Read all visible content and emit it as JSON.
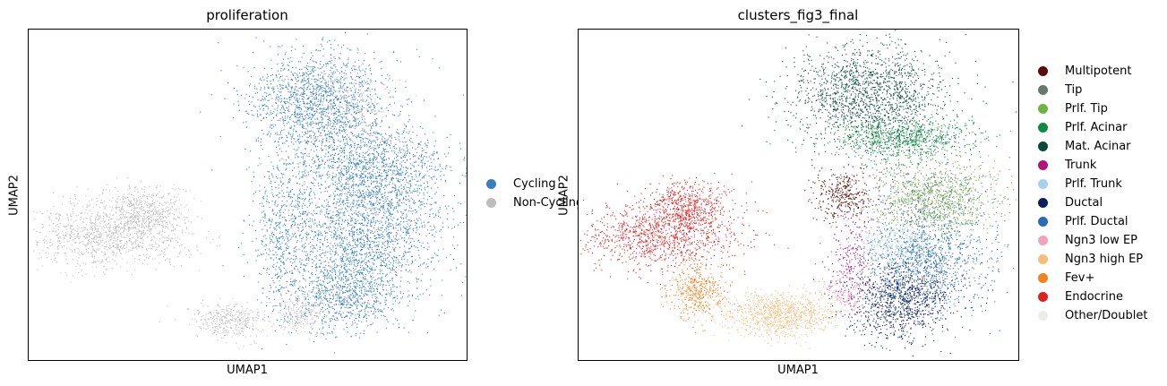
{
  "chart_data": [
    {
      "type": "scatter",
      "title": "proliferation",
      "xlabel": "UMAP1",
      "ylabel": "UMAP2",
      "grid": false,
      "ticks": false,
      "legend_position": "right",
      "legend": [
        {
          "label": "Cycling",
          "color": "#3a7ebf"
        },
        {
          "label": "Non-Cycling",
          "color": "#bdbdbd"
        }
      ],
      "groups": [
        {
          "name": "Cycling",
          "color": "#3a7ebf",
          "regions": [
            {
              "cx": 0.66,
              "cy": 0.22,
              "rx": 0.14,
              "ry": 0.14,
              "n": 1600
            },
            {
              "cx": 0.78,
              "cy": 0.42,
              "rx": 0.16,
              "ry": 0.13,
              "n": 1400
            },
            {
              "cx": 0.76,
              "cy": 0.62,
              "rx": 0.17,
              "ry": 0.16,
              "n": 1700
            },
            {
              "cx": 0.72,
              "cy": 0.8,
              "rx": 0.12,
              "ry": 0.1,
              "n": 900
            },
            {
              "cx": 0.58,
              "cy": 0.6,
              "rx": 0.06,
              "ry": 0.22,
              "n": 500
            }
          ]
        },
        {
          "name": "Non-Cycling",
          "color": "#bdbdbd",
          "regions": [
            {
              "cx": 0.18,
              "cy": 0.62,
              "rx": 0.16,
              "ry": 0.09,
              "n": 1000
            },
            {
              "cx": 0.26,
              "cy": 0.55,
              "rx": 0.09,
              "ry": 0.07,
              "n": 500
            },
            {
              "cx": 0.46,
              "cy": 0.88,
              "rx": 0.08,
              "ry": 0.05,
              "n": 350
            },
            {
              "cx": 0.62,
              "cy": 0.86,
              "rx": 0.06,
              "ry": 0.05,
              "n": 220
            },
            {
              "cx": 0.74,
              "cy": 0.2,
              "rx": 0.08,
              "ry": 0.08,
              "n": 180
            }
          ]
        }
      ]
    },
    {
      "type": "scatter",
      "title": "clusters_fig3_final",
      "xlabel": "UMAP1",
      "ylabel": "UMAP2",
      "grid": false,
      "ticks": false,
      "legend_position": "right",
      "legend": [
        {
          "label": "Multipotent",
          "color": "#5c0a0a"
        },
        {
          "label": "Tip",
          "color": "#637a6f"
        },
        {
          "label": "Prlf. Tip",
          "color": "#6db33f"
        },
        {
          "label": "Prlf. Acinar",
          "color": "#0e8a44"
        },
        {
          "label": "Mat. Acinar",
          "color": "#0b4a3b"
        },
        {
          "label": "Trunk",
          "color": "#b5117e"
        },
        {
          "label": "Prlf. Trunk",
          "color": "#a6cff0"
        },
        {
          "label": "Ductal",
          "color": "#0c1f5e"
        },
        {
          "label": "Prlf. Ductal",
          "color": "#2a6db3"
        },
        {
          "label": "Ngn3 low EP",
          "color": "#f3a3b8"
        },
        {
          "label": "Ngn3 high EP",
          "color": "#f7bd7b"
        },
        {
          "label": "Fev+",
          "color": "#f4821f"
        },
        {
          "label": "Endocrine",
          "color": "#dc2222"
        },
        {
          "label": "Other/Doublet",
          "color": "#ececec"
        }
      ],
      "groups": [
        {
          "name": "Mat. Acinar",
          "color": "#0b4a3b",
          "regions": [
            {
              "cx": 0.66,
              "cy": 0.2,
              "rx": 0.16,
              "ry": 0.14,
              "n": 1700
            }
          ]
        },
        {
          "name": "Prlf. Acinar",
          "color": "#0e8a44",
          "regions": [
            {
              "cx": 0.74,
              "cy": 0.33,
              "rx": 0.14,
              "ry": 0.06,
              "n": 800
            }
          ]
        },
        {
          "name": "Prlf. Tip",
          "color": "#6db33f",
          "regions": [
            {
              "cx": 0.82,
              "cy": 0.52,
              "rx": 0.13,
              "ry": 0.1,
              "n": 700
            }
          ]
        },
        {
          "name": "Tip",
          "color": "#637a6f",
          "regions": [
            {
              "cx": 0.78,
              "cy": 0.5,
              "rx": 0.14,
              "ry": 0.1,
              "n": 600
            }
          ]
        },
        {
          "name": "Multipotent",
          "color": "#5c0a0a",
          "regions": [
            {
              "cx": 0.6,
              "cy": 0.5,
              "rx": 0.06,
              "ry": 0.07,
              "n": 350
            }
          ]
        },
        {
          "name": "Prlf. Trunk",
          "color": "#a6cff0",
          "regions": [
            {
              "cx": 0.72,
              "cy": 0.66,
              "rx": 0.08,
              "ry": 0.07,
              "n": 300
            }
          ]
        },
        {
          "name": "Prlf. Ductal",
          "color": "#2a6db3",
          "regions": [
            {
              "cx": 0.79,
              "cy": 0.7,
              "rx": 0.13,
              "ry": 0.13,
              "n": 1100
            }
          ]
        },
        {
          "name": "Ductal",
          "color": "#0c1f5e",
          "regions": [
            {
              "cx": 0.73,
              "cy": 0.82,
              "rx": 0.11,
              "ry": 0.1,
              "n": 1000
            }
          ]
        },
        {
          "name": "Trunk",
          "color": "#b5117e",
          "regions": [
            {
              "cx": 0.62,
              "cy": 0.7,
              "rx": 0.04,
              "ry": 0.12,
              "n": 200
            }
          ]
        },
        {
          "name": "Ngn3 high EP",
          "color": "#f7bd7b",
          "regions": [
            {
              "cx": 0.46,
              "cy": 0.86,
              "rx": 0.11,
              "ry": 0.06,
              "n": 900
            }
          ]
        },
        {
          "name": "Fev+",
          "color": "#f4821f",
          "regions": [
            {
              "cx": 0.27,
              "cy": 0.79,
              "rx": 0.06,
              "ry": 0.07,
              "n": 450
            }
          ]
        },
        {
          "name": "Endocrine",
          "color": "#dc2222",
          "regions": [
            {
              "cx": 0.19,
              "cy": 0.62,
              "rx": 0.16,
              "ry": 0.09,
              "n": 1100
            },
            {
              "cx": 0.25,
              "cy": 0.53,
              "rx": 0.08,
              "ry": 0.07,
              "n": 500
            }
          ]
        },
        {
          "name": "Ngn3 low EP",
          "color": "#f3a3b8",
          "regions": [
            {
              "cx": 0.6,
              "cy": 0.8,
              "rx": 0.05,
              "ry": 0.05,
              "n": 150
            }
          ]
        },
        {
          "name": "Other/Doublet",
          "color": "#ececec",
          "regions": [
            {
              "cx": 0.6,
              "cy": 0.6,
              "rx": 0.04,
              "ry": 0.04,
              "n": 60
            }
          ]
        }
      ]
    }
  ]
}
